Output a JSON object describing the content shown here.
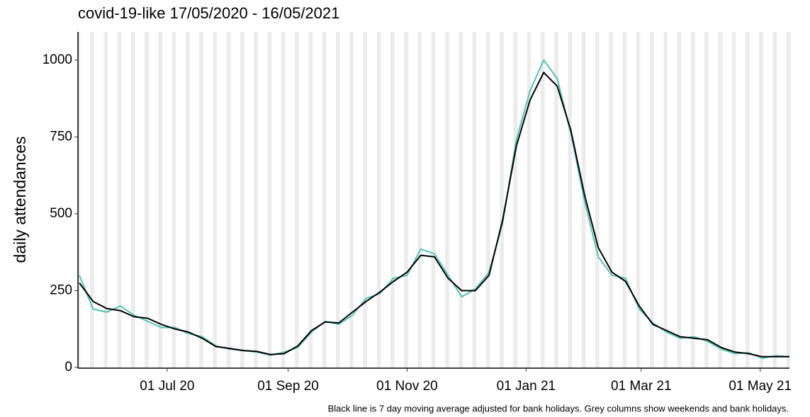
{
  "chart_data": {
    "type": "line",
    "title": "covid-19-like 17/05/2020 - 16/05/2021",
    "y_label": "daily attendances",
    "caption": "Black line is 7 day moving average adjusted for bank holidays. Grey columns show weekends and bank holidays.",
    "x": [
      "2020-05-17",
      "2020-05-24",
      "2020-05-31",
      "2020-06-07",
      "2020-06-14",
      "2020-06-21",
      "2020-06-28",
      "2020-07-05",
      "2020-07-12",
      "2020-07-19",
      "2020-07-26",
      "2020-08-02",
      "2020-08-09",
      "2020-08-16",
      "2020-08-23",
      "2020-08-30",
      "2020-09-06",
      "2020-09-13",
      "2020-09-20",
      "2020-09-27",
      "2020-10-04",
      "2020-10-11",
      "2020-10-18",
      "2020-10-25",
      "2020-11-01",
      "2020-11-08",
      "2020-11-15",
      "2020-11-22",
      "2020-11-29",
      "2020-12-06",
      "2020-12-13",
      "2020-12-20",
      "2020-12-27",
      "2021-01-03",
      "2021-01-10",
      "2021-01-17",
      "2021-01-24",
      "2021-01-31",
      "2021-02-07",
      "2021-02-14",
      "2021-02-21",
      "2021-02-28",
      "2021-03-07",
      "2021-03-14",
      "2021-03-21",
      "2021-03-28",
      "2021-04-04",
      "2021-04-11",
      "2021-04-18",
      "2021-04-25",
      "2021-05-02",
      "2021-05-09",
      "2021-05-16"
    ],
    "series": [
      {
        "name": "daily attendances",
        "color": "#4fc4b5",
        "values": [
          300,
          190,
          180,
          200,
          170,
          150,
          130,
          130,
          110,
          100,
          70,
          60,
          55,
          50,
          40,
          50,
          65,
          115,
          150,
          140,
          170,
          225,
          240,
          290,
          300,
          385,
          370,
          300,
          230,
          255,
          310,
          470,
          740,
          900,
          1000,
          940,
          760,
          540,
          360,
          300,
          290,
          190,
          145,
          115,
          95,
          100,
          85,
          60,
          45,
          48,
          30,
          38,
          35
        ]
      },
      {
        "name": "7 day moving average",
        "color": "#000000",
        "values": [
          275,
          215,
          192,
          185,
          165,
          160,
          140,
          125,
          115,
          95,
          68,
          62,
          55,
          52,
          42,
          45,
          70,
          120,
          148,
          145,
          180,
          215,
          245,
          280,
          310,
          365,
          360,
          290,
          250,
          250,
          300,
          480,
          720,
          870,
          960,
          915,
          770,
          560,
          390,
          310,
          280,
          200,
          140,
          120,
          100,
          95,
          90,
          65,
          50,
          45,
          35,
          35,
          35
        ]
      }
    ],
    "xlim": [
      "2020-05-17",
      "2021-05-16"
    ],
    "xticks": [
      {
        "value": "2020-07-01",
        "label": "01 Jul 20"
      },
      {
        "value": "2020-09-01",
        "label": "01 Sep 20"
      },
      {
        "value": "2020-11-01",
        "label": "01 Nov 20"
      },
      {
        "value": "2021-01-01",
        "label": "01 Jan 21"
      },
      {
        "value": "2021-03-01",
        "label": "01 Mar 21"
      },
      {
        "value": "2021-05-01",
        "label": "01 May 21"
      }
    ],
    "ylim": [
      0,
      1092
    ],
    "yticks": [
      0,
      250,
      500,
      750,
      1000
    ],
    "weekend_columns": true,
    "column_color": "#ebebeb"
  }
}
